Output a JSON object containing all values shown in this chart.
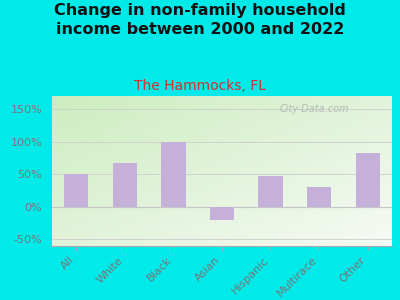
{
  "title": "Change in non-family household\nincome between 2000 and 2022",
  "subtitle": "The Hammocks, FL",
  "categories": [
    "All",
    "White",
    "Black",
    "Asian",
    "Hispanic",
    "Multirace",
    "Other"
  ],
  "values": [
    50,
    68,
    100,
    -20,
    47,
    30,
    82
  ],
  "bar_color": "#c4b0d8",
  "title_fontsize": 11.5,
  "subtitle_fontsize": 10,
  "subtitle_color": "#cc3333",
  "title_color": "#111111",
  "background_outer": "#00eaea",
  "ylim": [
    -60,
    170
  ],
  "yticks": [
    -50,
    0,
    50,
    100,
    150
  ],
  "ytick_labels": [
    "-50%",
    "0%",
    "50%",
    "100%",
    "150%"
  ],
  "watermark": "City-Data.com",
  "grid_color": "#cccccc",
  "spine_color": "#aaaaaa",
  "tick_color": "#777777"
}
